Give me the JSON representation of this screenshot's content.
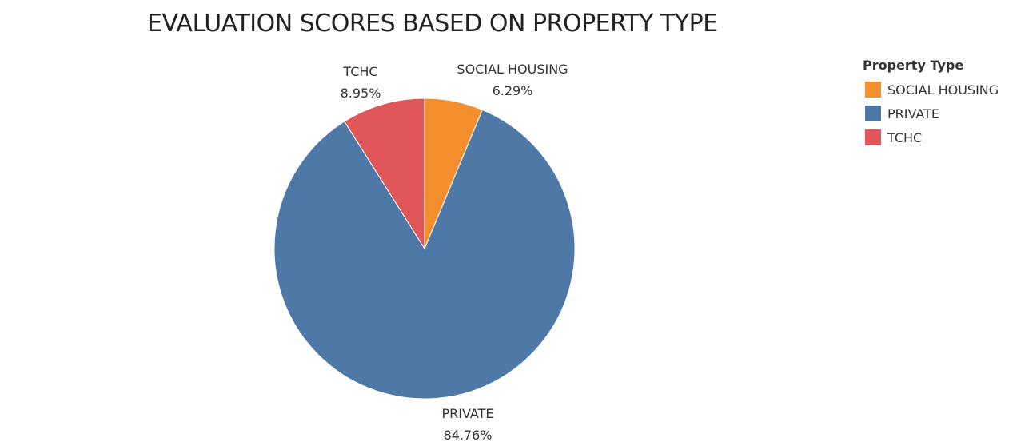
{
  "chart_data": {
    "type": "pie",
    "title": "EVALUATION SCORES BASED ON PROPERTY TYPE",
    "legend_title": "Property Type",
    "legend_position": "top-right",
    "slices": [
      {
        "label": "SOCIAL HOUSING",
        "value": 6.29,
        "display": "6.29%",
        "color": "#F28E2B"
      },
      {
        "label": "PRIVATE",
        "value": 84.76,
        "display": "84.76%",
        "color": "#4E79A7"
      },
      {
        "label": "TCHC",
        "value": 8.95,
        "display": "8.95%",
        "color": "#E15759"
      }
    ]
  }
}
